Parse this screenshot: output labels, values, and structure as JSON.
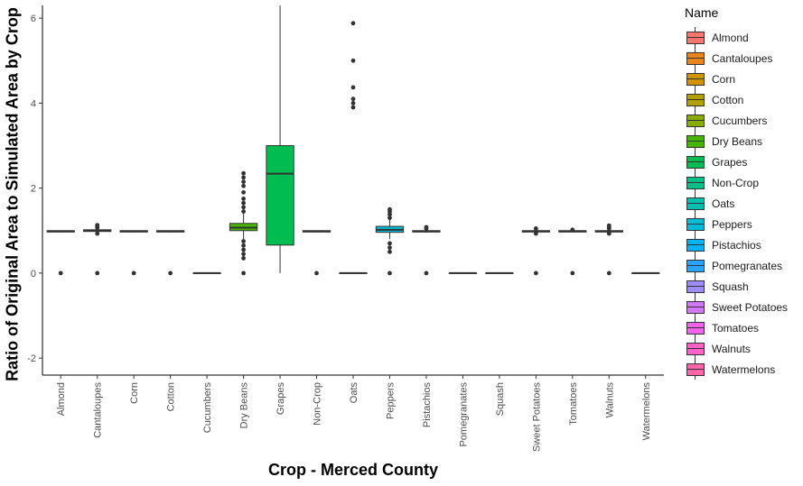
{
  "chart_data": {
    "type": "box",
    "xlabel": "Crop - Merced County",
    "ylabel": "Ratio of Original Area to Simulated Area by Crop",
    "ylim": [
      -2.4,
      6.3
    ],
    "yticks": [
      -2,
      0,
      2,
      4,
      6
    ],
    "grid": false,
    "legend_title": "Name",
    "legend_position": "right",
    "categories": [
      "Almond",
      "Cantaloupes",
      "Corn",
      "Cotton",
      "Cucumbers",
      "Dry Beans",
      "Grapes",
      "Non-Crop",
      "Oats",
      "Peppers",
      "Pistachios",
      "Pomegranates",
      "Squash",
      "Sweet Potatoes",
      "Tomatoes",
      "Walnuts",
      "Watermelons"
    ],
    "colors": [
      "#F8766D",
      "#E7851E",
      "#D09400",
      "#B2A100",
      "#89AC00",
      "#45B500",
      "#00BC51",
      "#00C087",
      "#00C0B2",
      "#00BCD6",
      "#00B3F2",
      "#29A3FF",
      "#9C8DFF",
      "#D277FF",
      "#F166E8",
      "#FF61C7",
      "#FF66A8"
    ],
    "boxes": [
      {
        "name": "Almond",
        "q1": 0.97,
        "median": 0.98,
        "q3": 1.0,
        "whisker_low": 0.96,
        "whisker_high": 1.0,
        "outliers": [
          0.0
        ]
      },
      {
        "name": "Cantaloupes",
        "q1": 0.98,
        "median": 1.0,
        "q3": 1.02,
        "whisker_low": 0.95,
        "whisker_high": 1.05,
        "outliers": [
          0.0,
          0.93,
          1.07,
          1.1,
          1.13
        ]
      },
      {
        "name": "Corn",
        "q1": 0.97,
        "median": 0.98,
        "q3": 1.0,
        "whisker_low": 0.96,
        "whisker_high": 1.0,
        "outliers": [
          0.0
        ]
      },
      {
        "name": "Cotton",
        "q1": 0.97,
        "median": 0.98,
        "q3": 1.0,
        "whisker_low": 0.96,
        "whisker_high": 1.0,
        "outliers": [
          0.0
        ]
      },
      {
        "name": "Cucumbers",
        "q1": 0.0,
        "median": 0.0,
        "q3": 0.0,
        "whisker_low": 0.0,
        "whisker_high": 0.0,
        "outliers": []
      },
      {
        "name": "Dry Beans",
        "q1": 1.0,
        "median": 1.07,
        "q3": 1.17,
        "whisker_low": 0.8,
        "whisker_high": 1.4,
        "outliers": [
          0.0,
          0.35,
          0.45,
          0.55,
          0.65,
          0.75,
          1.45,
          1.55,
          1.65,
          1.75,
          1.9,
          2.05,
          2.15,
          2.25,
          2.35
        ]
      },
      {
        "name": "Grapes",
        "q1": 0.66,
        "median": 2.34,
        "q3": 3.0,
        "whisker_low": 0.0,
        "whisker_high": 6.3,
        "outliers": []
      },
      {
        "name": "Non-Crop",
        "q1": 0.97,
        "median": 0.98,
        "q3": 1.0,
        "whisker_low": 0.96,
        "whisker_high": 1.0,
        "outliers": [
          0.0
        ]
      },
      {
        "name": "Oats",
        "q1": 0.0,
        "median": 0.0,
        "q3": 0.0,
        "whisker_low": 0.0,
        "whisker_high": 0.0,
        "outliers": [
          3.9,
          4.0,
          4.1,
          4.37,
          5.0,
          5.88
        ]
      },
      {
        "name": "Peppers",
        "q1": 0.96,
        "median": 1.02,
        "q3": 1.1,
        "whisker_low": 0.8,
        "whisker_high": 1.25,
        "outliers": [
          0.0,
          0.5,
          0.6,
          0.7,
          1.3,
          1.38,
          1.45,
          1.5
        ]
      },
      {
        "name": "Pistachios",
        "q1": 0.97,
        "median": 0.98,
        "q3": 1.0,
        "whisker_low": 0.95,
        "whisker_high": 1.02,
        "outliers": [
          0.0,
          1.05,
          1.08
        ]
      },
      {
        "name": "Pomegranates",
        "q1": 0.0,
        "median": 0.0,
        "q3": 0.0,
        "whisker_low": 0.0,
        "whisker_high": 0.0,
        "outliers": []
      },
      {
        "name": "Squash",
        "q1": 0.0,
        "median": 0.0,
        "q3": 0.0,
        "whisker_low": 0.0,
        "whisker_high": 0.0,
        "outliers": []
      },
      {
        "name": "Sweet Potatoes",
        "q1": 0.97,
        "median": 0.98,
        "q3": 1.0,
        "whisker_low": 0.96,
        "whisker_high": 1.0,
        "outliers": [
          0.0,
          0.93,
          1.05
        ]
      },
      {
        "name": "Tomatoes",
        "q1": 0.97,
        "median": 0.98,
        "q3": 1.0,
        "whisker_low": 0.96,
        "whisker_high": 1.0,
        "outliers": [
          0.0,
          1.02
        ]
      },
      {
        "name": "Walnuts",
        "q1": 0.97,
        "median": 0.98,
        "q3": 1.0,
        "whisker_low": 0.95,
        "whisker_high": 1.02,
        "outliers": [
          0.0,
          0.93,
          1.05,
          1.08,
          1.12
        ]
      },
      {
        "name": "Watermelons",
        "q1": 0.0,
        "median": 0.0,
        "q3": 0.0,
        "whisker_low": 0.0,
        "whisker_high": 0.0,
        "outliers": []
      }
    ]
  }
}
